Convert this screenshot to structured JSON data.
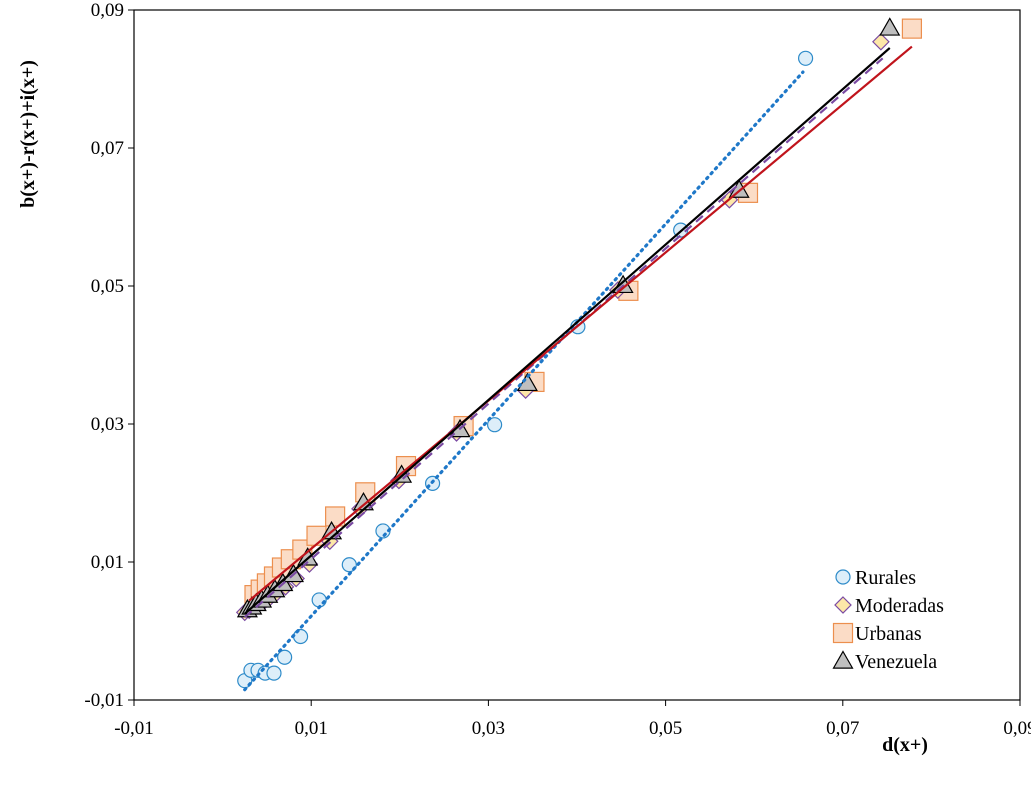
{
  "chart_data": {
    "type": "scatter",
    "xlabel": "d(x+)",
    "ylabel": "b(x+)-r(x+)+i(x+)",
    "xlim": [
      -0.01,
      0.09
    ],
    "ylim": [
      -0.01,
      0.09
    ],
    "x_ticks": [
      -0.01,
      0.01,
      0.03,
      0.05,
      0.07,
      0.09
    ],
    "y_ticks": [
      -0.01,
      0.01,
      0.03,
      0.05,
      0.07,
      0.09
    ],
    "x_tick_labels": [
      "-0,01",
      "0,01",
      "0,03",
      "0,05",
      "0,07",
      "0,09"
    ],
    "y_tick_labels": [
      "-0,01",
      "0,01",
      "0,03",
      "0,05",
      "0,07",
      "0,09"
    ],
    "grid": false,
    "legend_position": "bottom-right",
    "series": [
      {
        "name": "Rurales",
        "marker": "circle",
        "fill": "#ddeef9",
        "stroke": "#2e8bc9",
        "trendline": {
          "style": "dotted",
          "color": "#1f78c8",
          "x": [
            0.0025,
            0.0655
          ],
          "y": [
            -0.0085,
            0.081
          ]
        },
        "x": [
          0.0025,
          0.0032,
          0.004,
          0.0048,
          0.0058,
          0.007,
          0.0088,
          0.0109,
          0.0143,
          0.0181,
          0.0237,
          0.0307,
          0.0401,
          0.0517,
          0.0658
        ],
        "y": [
          -0.0072,
          -0.0057,
          -0.0057,
          -0.0061,
          -0.0061,
          -0.0038,
          -0.0008,
          0.0045,
          0.0096,
          0.0145,
          0.0214,
          0.0299,
          0.0441,
          0.0581,
          0.083
        ]
      },
      {
        "name": "Moderadas",
        "marker": "diamond",
        "fill": "#fde7a8",
        "stroke": "#7a4aa3",
        "trendline": {
          "style": "dashed",
          "color": "#7a4aa3",
          "x": [
            0.0025,
            0.0745
          ],
          "y": [
            0.002,
            0.083
          ]
        },
        "x": [
          0.0025,
          0.003,
          0.0035,
          0.004,
          0.0046,
          0.0053,
          0.0061,
          0.0071,
          0.0083,
          0.0098,
          0.0121,
          0.0155,
          0.0199,
          0.0264,
          0.0342,
          0.0446,
          0.0572,
          0.0743
        ],
        "y": [
          0.0027,
          0.003,
          0.0034,
          0.0038,
          0.0042,
          0.0048,
          0.0055,
          0.0064,
          0.0076,
          0.0097,
          0.013,
          0.0177,
          0.0218,
          0.0287,
          0.0349,
          0.0494,
          0.0625,
          0.0854
        ]
      },
      {
        "name": "Urbanas",
        "marker": "square",
        "fill": "#fbdcc6",
        "stroke": "#ec8f4e",
        "trendline": {
          "style": "solid",
          "color": "#c0141c",
          "x": [
            0.003,
            0.0778
          ],
          "y": [
            0.0044,
            0.0847
          ]
        },
        "x": [
          0.0036,
          0.0043,
          0.005,
          0.0058,
          0.0067,
          0.0077,
          0.009,
          0.0106,
          0.0127,
          0.0161,
          0.0207,
          0.0272,
          0.0352,
          0.0458,
          0.0593,
          0.0778
        ],
        "y": [
          0.0052,
          0.006,
          0.0069,
          0.0079,
          0.0092,
          0.0104,
          0.0118,
          0.0138,
          0.0166,
          0.0201,
          0.0239,
          0.0297,
          0.0361,
          0.0493,
          0.0635,
          0.0873
        ]
      },
      {
        "name": "Venezuela",
        "marker": "triangle",
        "fill": "#bfbfbf",
        "stroke": "#000000",
        "trendline": {
          "style": "solid",
          "color": "#000000",
          "x": [
            0.0025,
            0.0753
          ],
          "y": [
            0.0025,
            0.0845
          ]
        },
        "x": [
          0.0028,
          0.0033,
          0.0038,
          0.0044,
          0.0051,
          0.0059,
          0.0068,
          0.008,
          0.0096,
          0.0123,
          0.0159,
          0.0202,
          0.0268,
          0.0344,
          0.0452,
          0.0583,
          0.0753
        ],
        "y": [
          0.0031,
          0.0035,
          0.004,
          0.0045,
          0.0052,
          0.006,
          0.0069,
          0.0082,
          0.0106,
          0.0144,
          0.0186,
          0.0226,
          0.0292,
          0.0359,
          0.0501,
          0.0639,
          0.0874
        ]
      }
    ]
  }
}
